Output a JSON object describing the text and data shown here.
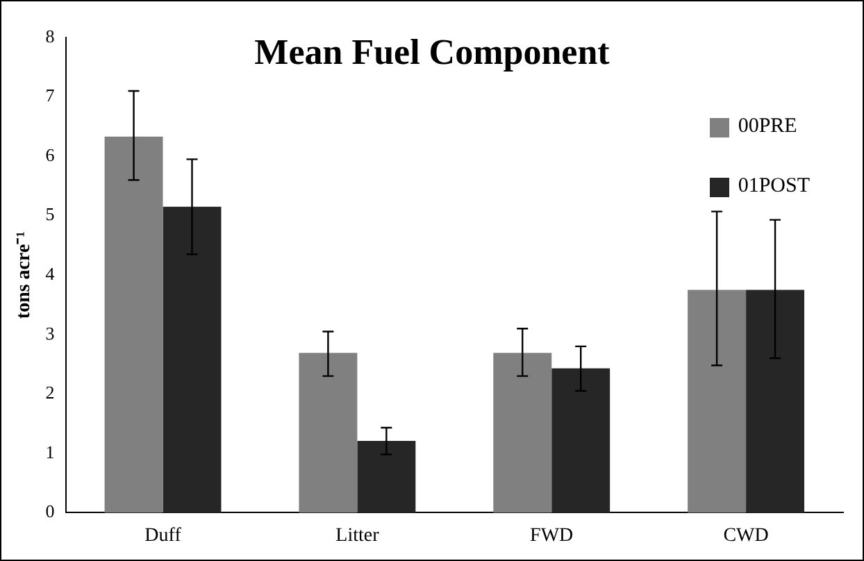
{
  "chart_data": {
    "type": "bar",
    "title": "Mean Fuel Component",
    "ylabel": "tons acre⁻¹",
    "categories": [
      "Duff",
      "Litter",
      "FWD",
      "CWD"
    ],
    "series": [
      {
        "name": "00PRE",
        "color": "#808080",
        "values": [
          6.33,
          2.69,
          2.69,
          3.75
        ],
        "errors": [
          [
            5.6,
            7.1
          ],
          [
            2.3,
            3.05
          ],
          [
            2.3,
            3.1
          ],
          [
            2.48,
            5.07
          ]
        ]
      },
      {
        "name": "01POST",
        "color": "#262626",
        "values": [
          5.15,
          1.21,
          2.43,
          3.75
        ],
        "errors": [
          [
            4.35,
            5.95
          ],
          [
            0.98,
            1.43
          ],
          [
            2.05,
            2.8
          ],
          [
            2.6,
            4.93
          ]
        ]
      }
    ],
    "ylim": [
      0,
      8
    ],
    "yticks": [
      0,
      1,
      2,
      3,
      4,
      5,
      6,
      7,
      8
    ],
    "grid": false,
    "legend": "top right"
  }
}
